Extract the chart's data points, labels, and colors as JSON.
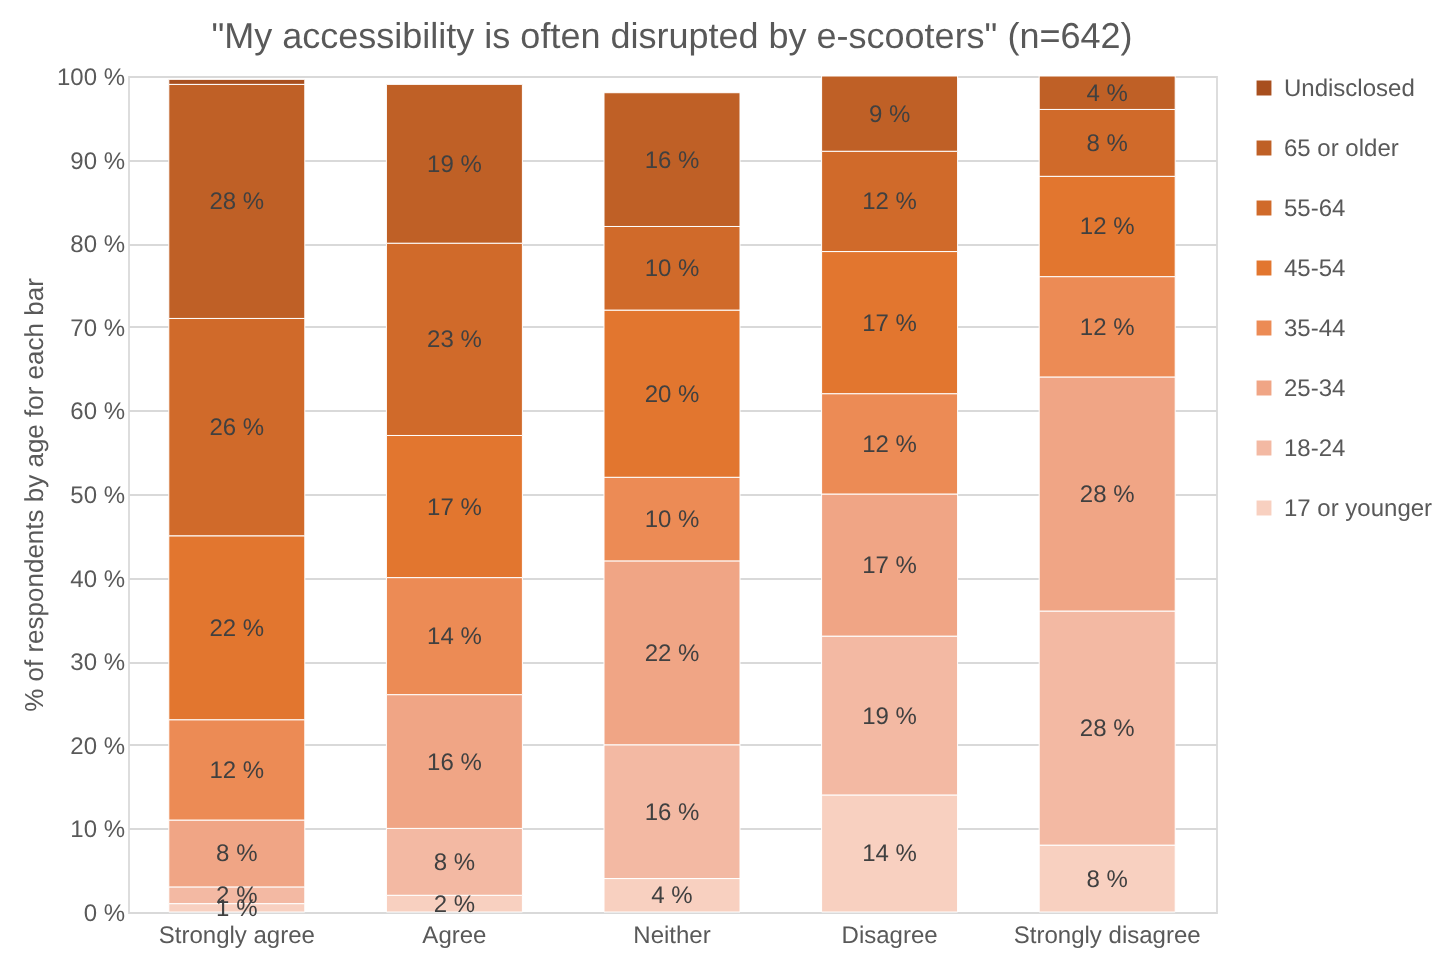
{
  "chart_data": {
    "type": "bar",
    "stacked": true,
    "title": "\"My accessibility is often disrupted by e-scooters\" (n=642)",
    "ylabel": "% of respondents by age for each bar",
    "categories": [
      "Strongly agree",
      "Agree",
      "Neither",
      "Disagree",
      "Strongly disagree"
    ],
    "series": [
      {
        "name": "17 or younger",
        "color": "#f8d0c0",
        "values": [
          1,
          2,
          4,
          14,
          8
        ],
        "value_labels": [
          "1 %",
          "2 %",
          "4 %",
          "14 %",
          "8 %"
        ]
      },
      {
        "name": "18-24",
        "color": "#f3b9a3",
        "values": [
          2,
          8,
          16,
          19,
          28
        ],
        "value_labels": [
          "2 %",
          "8 %",
          "16 %",
          "19 %",
          "28 %"
        ]
      },
      {
        "name": "25-34",
        "color": "#f0a585",
        "values": [
          8,
          16,
          22,
          17,
          28
        ],
        "value_labels": [
          "8 %",
          "16 %",
          "22 %",
          "17 %",
          "28 %"
        ]
      },
      {
        "name": "35-44",
        "color": "#ec8b55",
        "values": [
          12,
          14,
          10,
          12,
          12
        ],
        "value_labels": [
          "12 %",
          "14 %",
          "10 %",
          "12 %",
          "12 %"
        ]
      },
      {
        "name": "45-54",
        "color": "#e2762f",
        "values": [
          22,
          17,
          20,
          17,
          12
        ],
        "value_labels": [
          "22 %",
          "17 %",
          "20 %",
          "17 %",
          "12 %"
        ]
      },
      {
        "name": "55-64",
        "color": "#d06a2a",
        "values": [
          26,
          23,
          10,
          12,
          8
        ],
        "value_labels": [
          "26 %",
          "23 %",
          "10 %",
          "12 %",
          "8 %"
        ]
      },
      {
        "name": "65 or older",
        "color": "#bf6026",
        "values": [
          28,
          19,
          16,
          9,
          4
        ],
        "value_labels": [
          "28 %",
          "19 %",
          "16 %",
          "9 %",
          "4 %"
        ]
      },
      {
        "name": "Undisclosed",
        "color": "#a84f1e",
        "values": [
          0.6,
          null,
          null,
          null,
          null
        ],
        "value_labels": [
          null,
          null,
          null,
          null,
          null
        ]
      }
    ],
    "ylim": [
      0,
      100
    ],
    "yticks": [
      {
        "value": 0,
        "label": "0 %"
      },
      {
        "value": 10,
        "label": "10 %"
      },
      {
        "value": 20,
        "label": "20 %"
      },
      {
        "value": 30,
        "label": "30 %"
      },
      {
        "value": 40,
        "label": "40 %"
      },
      {
        "value": 50,
        "label": "50 %"
      },
      {
        "value": 60,
        "label": "60 %"
      },
      {
        "value": 70,
        "label": "70 %"
      },
      {
        "value": 80,
        "label": "80 %"
      },
      {
        "value": 90,
        "label": "90 %"
      },
      {
        "value": 100,
        "label": "100 %"
      }
    ],
    "grid": "y",
    "legend": "right"
  }
}
